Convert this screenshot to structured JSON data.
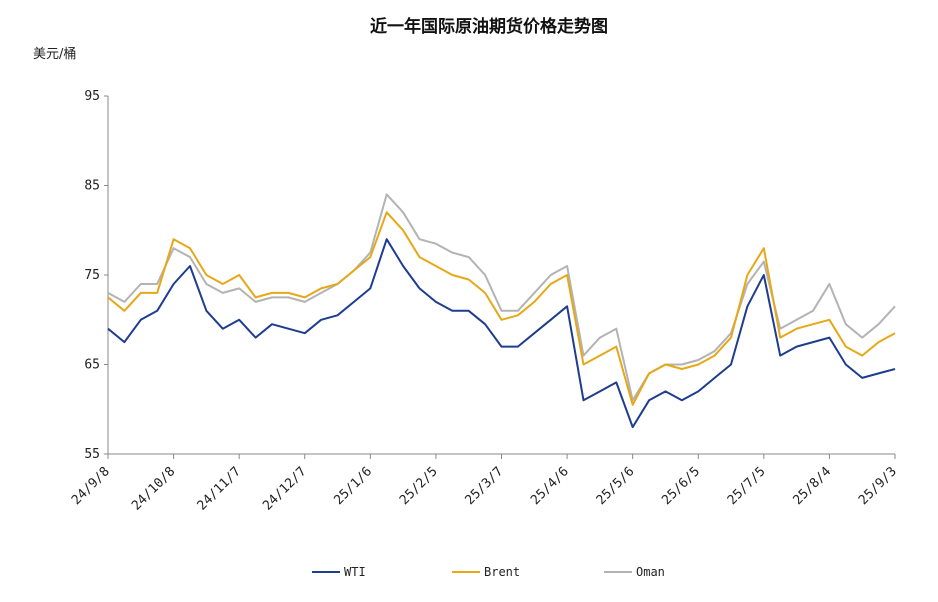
{
  "chart_data": {
    "type": "line",
    "title": "近一年国际原油期货价格走势图",
    "ylabel": "美元/桶",
    "xlabel": "",
    "ylim": [
      55,
      95
    ],
    "yticks": [
      55,
      65,
      75,
      85,
      95
    ],
    "xticks": [
      "24/9/8",
      "24/10/8",
      "24/11/7",
      "24/12/7",
      "25/1/6",
      "25/2/5",
      "25/3/7",
      "25/4/6",
      "25/5/6",
      "25/6/5",
      "25/7/5",
      "25/8/4",
      "25/9/3"
    ],
    "grid": false,
    "legend_position": "bottom",
    "x": [
      "24/9/8",
      "24/9/15",
      "24/9/22",
      "24/9/29",
      "24/10/8",
      "24/10/15",
      "24/10/22",
      "24/10/29",
      "24/11/7",
      "24/11/14",
      "24/11/21",
      "24/11/28",
      "24/12/7",
      "24/12/14",
      "24/12/21",
      "24/12/28",
      "25/1/6",
      "25/1/13",
      "25/1/20",
      "25/1/27",
      "25/2/5",
      "25/2/12",
      "25/2/19",
      "25/2/26",
      "25/3/7",
      "25/3/14",
      "25/3/21",
      "25/3/28",
      "25/4/6",
      "25/4/13",
      "25/4/20",
      "25/4/27",
      "25/5/6",
      "25/5/13",
      "25/5/20",
      "25/5/27",
      "25/6/5",
      "25/6/12",
      "25/6/19",
      "25/6/26",
      "25/7/5",
      "25/7/12",
      "25/7/19",
      "25/7/26",
      "25/8/4",
      "25/8/11",
      "25/8/18",
      "25/8/25",
      "25/9/3"
    ],
    "series": [
      {
        "name": "WTI",
        "color": "#1f3d8f",
        "values": [
          69,
          67.5,
          70,
          71,
          74,
          76,
          71,
          69,
          70,
          68,
          69.5,
          69,
          68.5,
          70,
          70.5,
          72,
          73.5,
          79,
          76,
          73.5,
          72,
          71,
          71,
          69.5,
          67,
          67,
          68.5,
          70,
          71.5,
          61,
          62,
          63,
          58,
          61,
          62,
          61,
          62,
          63.5,
          65,
          71.5,
          75,
          66,
          67,
          67.5,
          68,
          65,
          63.5,
          64,
          64.5
        ]
      },
      {
        "name": "Brent",
        "color": "#e6a817",
        "values": [
          72.5,
          71,
          73,
          73,
          79,
          78,
          75,
          74,
          75,
          72.5,
          73,
          73,
          72.5,
          73.5,
          74,
          75.5,
          77,
          82,
          80,
          77,
          76,
          75,
          74.5,
          73,
          70,
          70.5,
          72,
          74,
          75,
          65,
          66,
          67,
          60.5,
          64,
          65,
          64.5,
          65,
          66,
          68,
          75,
          78,
          68,
          69,
          69.5,
          70,
          67,
          66,
          67.5,
          68.5
        ]
      },
      {
        "name": "Oman",
        "color": "#b3b3b3",
        "values": [
          73,
          72,
          74,
          74,
          78,
          77,
          74,
          73,
          73.5,
          72,
          72.5,
          72.5,
          72,
          73,
          74,
          75.5,
          77.5,
          84,
          82,
          79,
          78.5,
          77.5,
          77,
          75,
          71,
          71,
          73,
          75,
          76,
          66,
          68,
          69,
          61,
          64,
          65,
          65,
          65.5,
          66.5,
          68.5,
          74,
          76.5,
          69,
          70,
          71,
          74,
          69.5,
          68,
          69.5,
          71.5
        ]
      }
    ]
  }
}
